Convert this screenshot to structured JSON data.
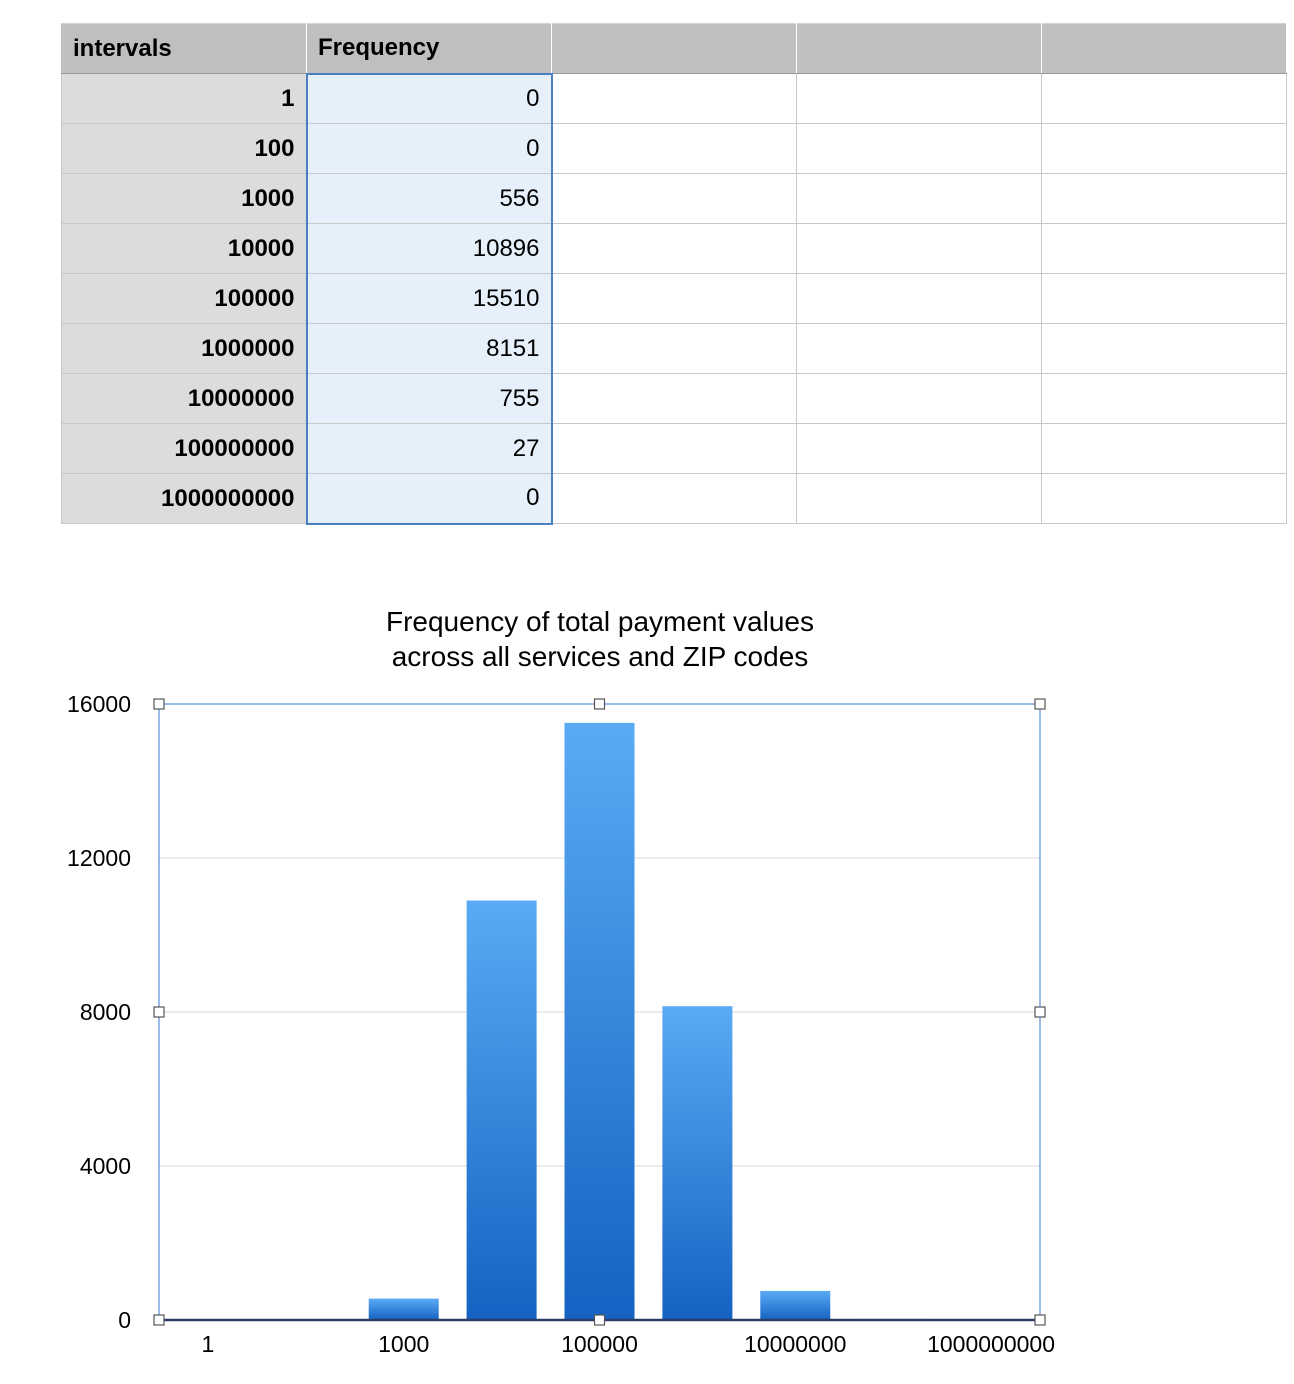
{
  "table": {
    "headers": [
      "intervals",
      "Frequency",
      "",
      "",
      ""
    ],
    "rows": [
      {
        "interval": "1",
        "frequency": "0"
      },
      {
        "interval": "100",
        "frequency": "0"
      },
      {
        "interval": "1000",
        "frequency": "556"
      },
      {
        "interval": "10000",
        "frequency": "10896"
      },
      {
        "interval": "100000",
        "frequency": "15510"
      },
      {
        "interval": "1000000",
        "frequency": "8151"
      },
      {
        "interval": "10000000",
        "frequency": "755"
      },
      {
        "interval": "100000000",
        "frequency": "27"
      },
      {
        "interval": "1000000000",
        "frequency": "0"
      }
    ]
  },
  "chart_data": {
    "type": "bar",
    "title_lines": [
      "Frequency of total payment values",
      "across all services and ZIP codes"
    ],
    "categories": [
      "1",
      "100",
      "1000",
      "10000",
      "100000",
      "1000000",
      "10000000",
      "100000000",
      "1000000000"
    ],
    "values": [
      0,
      0,
      556,
      10896,
      15510,
      8151,
      755,
      27,
      0
    ],
    "x_tick_labels": [
      "1",
      "",
      "1000",
      "",
      "100000",
      "",
      "10000000",
      "",
      "1000000000"
    ],
    "y_ticks": [
      0,
      4000,
      8000,
      12000,
      16000
    ],
    "ylim": [
      0,
      16000
    ],
    "grid": true,
    "bar_color_top": "#5aaaf5",
    "bar_color_bottom": "#1562c2",
    "selection_color": "#5b8fd8",
    "xlabel": "",
    "ylabel": ""
  }
}
